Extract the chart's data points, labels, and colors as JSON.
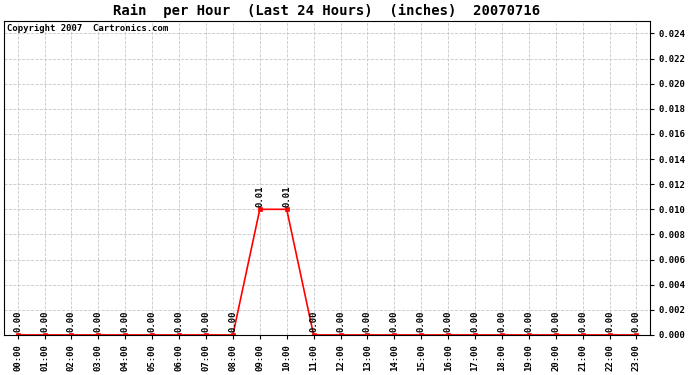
{
  "title": "Rain  per Hour  (Last 24 Hours)  (inches)  20070716",
  "copyright": "Copyright 2007  Cartronics.com",
  "background_color": "#ffffff",
  "plot_bg_color": "#ffffff",
  "grid_color": "#c8c8c8",
  "line_color": "#ff0000",
  "marker_color": "#ff0000",
  "text_color": "#000000",
  "hours": [
    0,
    1,
    2,
    3,
    4,
    5,
    6,
    7,
    8,
    9,
    10,
    11,
    12,
    13,
    14,
    15,
    16,
    17,
    18,
    19,
    20,
    21,
    22,
    23
  ],
  "values": [
    0.0,
    0.0,
    0.0,
    0.0,
    0.0,
    0.0,
    0.0,
    0.0,
    0.0,
    0.01,
    0.01,
    0.0,
    0.0,
    0.0,
    0.0,
    0.0,
    0.0,
    0.0,
    0.0,
    0.0,
    0.0,
    0.0,
    0.0,
    0.0
  ],
  "ylim": [
    0,
    0.025
  ],
  "yticks": [
    0.0,
    0.002,
    0.004,
    0.006,
    0.008,
    0.01,
    0.012,
    0.014,
    0.016,
    0.018,
    0.02,
    0.022,
    0.024
  ],
  "xlabel_fontsize": 6.5,
  "ylabel_fontsize": 6.5,
  "title_fontsize": 10,
  "annotation_fontsize": 6.5,
  "copyright_fontsize": 6.5
}
